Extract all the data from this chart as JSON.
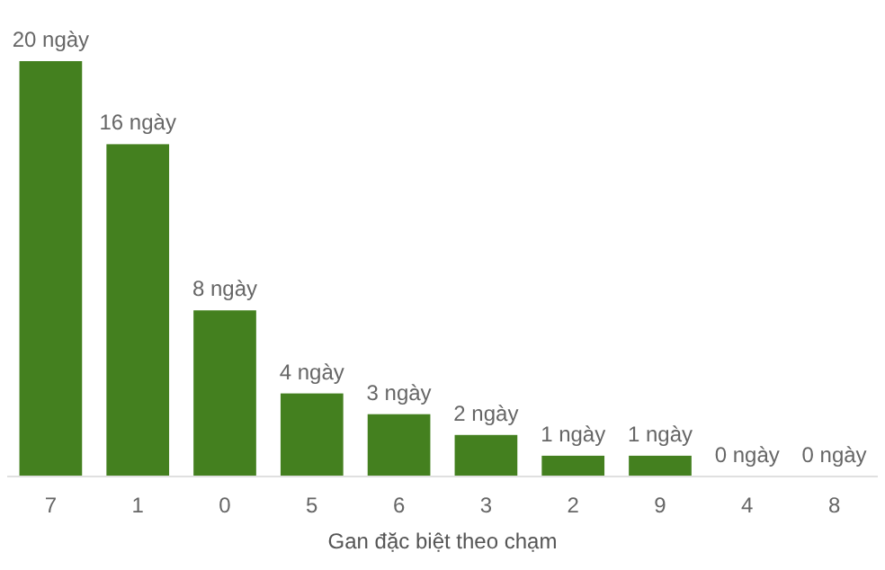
{
  "chart_data": {
    "type": "bar",
    "xlabel": "Gan đặc biệt theo chạm",
    "categories": [
      "7",
      "1",
      "0",
      "5",
      "6",
      "3",
      "2",
      "9",
      "4",
      "8"
    ],
    "values": [
      20,
      16,
      8,
      4,
      3,
      2,
      1,
      1,
      0,
      0
    ],
    "value_labels": [
      "20 ngày",
      "16 ngày",
      "8 ngày",
      "4 ngày",
      "3 ngày",
      "2 ngày",
      "1 ngày",
      "1 ngày",
      "0 ngày",
      "0 ngày"
    ],
    "color": "#44801f"
  }
}
